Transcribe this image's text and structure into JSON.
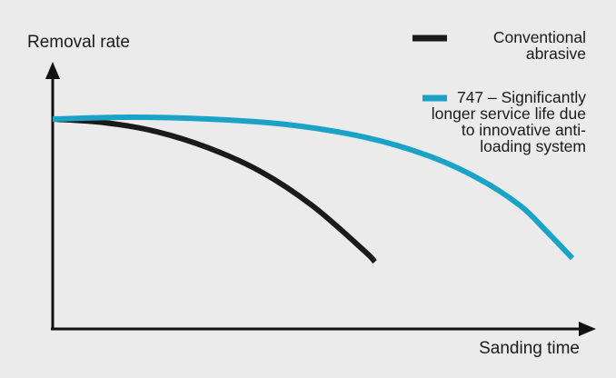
{
  "chart_data": {
    "type": "line",
    "title": "",
    "ylabel": "Removal rate",
    "xlabel": "Sanding time",
    "xlim": [
      0,
      100
    ],
    "ylim": [
      0,
      100
    ],
    "grid": false,
    "legend_position": "top-right",
    "background": "#ebebeb",
    "axis_color": "#111111",
    "series": [
      {
        "name": "Conventional abrasive",
        "legend_lines": [
          "Conventional",
          "abrasive"
        ],
        "color": "#1a1a1a",
        "x": [
          0,
          10,
          20,
          30,
          40,
          50,
          60,
          62
        ],
        "y": [
          100,
          98,
          93,
          84,
          71,
          52,
          27,
          21
        ]
      },
      {
        "name": "747 – Significantly longer service life due to innovative anti-loading system",
        "legend_lines": [
          "747 – Significantly",
          "longer service life due",
          "to innovative anti-",
          "loading system"
        ],
        "color": "#1aa3c7",
        "x": [
          0,
          15,
          30,
          45,
          60,
          72,
          82,
          90,
          95,
          100
        ],
        "y": [
          100,
          101,
          100,
          97,
          90,
          80,
          67,
          52,
          38,
          23
        ]
      }
    ]
  }
}
